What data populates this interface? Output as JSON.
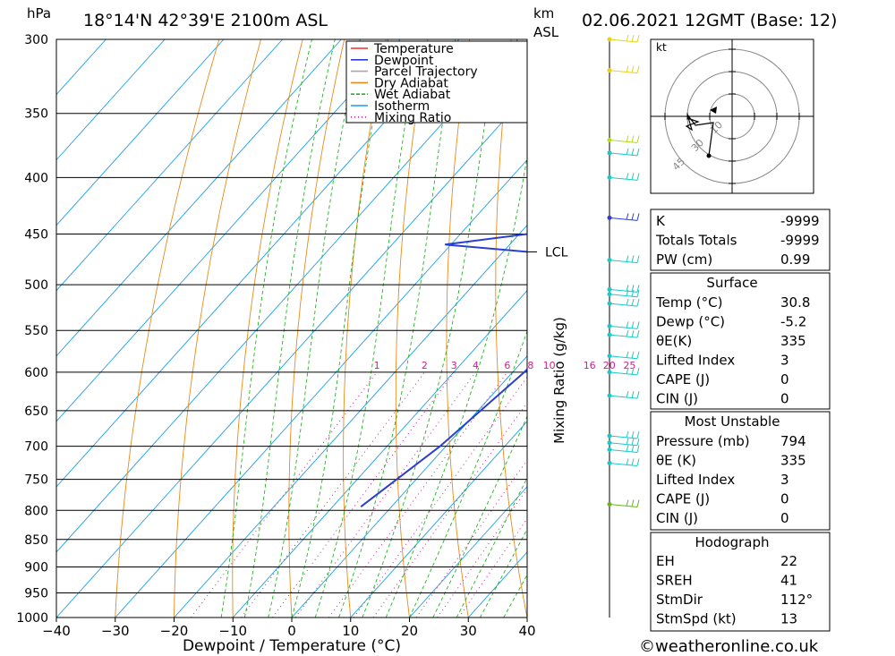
{
  "header": {
    "hpa_label": "hPa",
    "location": "18°14'N  42°39'E  2100m  ASL",
    "km_label": "km",
    "asl_label": "ASL",
    "datetime": "02.06.2021  12GMT  (Base: 12)"
  },
  "chart_data": {
    "type": "line",
    "title": "18°14'N  42°39'E  2100m  ASL",
    "xlabel": "Dewpoint / Temperature (°C)",
    "ylabel": "hPa",
    "right_axis_label": "Mixing Ratio (g/kg)",
    "x_ticks": [
      -40,
      -30,
      -20,
      -10,
      0,
      10,
      20,
      30,
      40
    ],
    "x_tick_labels": [
      "−40",
      "−30",
      "−20",
      "−10",
      "0",
      "10",
      "20",
      "30",
      "40"
    ],
    "pressure_levels": [
      300,
      350,
      400,
      450,
      500,
      550,
      600,
      650,
      700,
      750,
      800,
      850,
      900,
      950,
      1000
    ],
    "pressure_labels": [
      "300",
      "350",
      "400",
      "450",
      "500",
      "550",
      "600",
      "650",
      "700",
      "750",
      "800",
      "850",
      "900",
      "950",
      "1000"
    ],
    "xlim": [
      -40,
      40
    ],
    "ylim": [
      1000,
      300
    ],
    "y_scale": "log",
    "mixing_ratios": [
      1,
      2,
      3,
      4,
      6,
      8,
      10,
      16,
      20,
      25
    ],
    "mixing_ratio_labels": [
      "1",
      "2",
      "3",
      "4",
      "6",
      "8",
      "10",
      "16",
      "20",
      "25"
    ],
    "lcl_label": "LCL",
    "lcl_pressure": 467,
    "legend": [
      {
        "label": "Temperature",
        "color": "#e8302a",
        "style": "solid"
      },
      {
        "label": "Dewpoint",
        "color": "#2a3fd1",
        "style": "solid"
      },
      {
        "label": "Parcel Trajectory",
        "color": "#a8a8a8",
        "style": "solid"
      },
      {
        "label": "Dry Adiabat",
        "color": "#e88a1a",
        "style": "solid"
      },
      {
        "label": "Wet Adiabat",
        "color": "#22b422",
        "style": "dashed"
      },
      {
        "label": "Isotherm",
        "color": "#1e9ee8",
        "style": "solid"
      },
      {
        "label": "Mixing Ratio",
        "color": "#d0208a",
        "style": "dotted"
      }
    ],
    "series": [
      {
        "name": "Temperature",
        "color": "#e8302a",
        "points": [
          [
            794,
            30.8
          ],
          [
            780,
            28
          ],
          [
            600,
            12
          ],
          [
            550,
            7
          ],
          [
            500,
            2
          ],
          [
            475,
            -0.5
          ],
          [
            465,
            2
          ],
          [
            450,
            2.5
          ],
          [
            420,
            2.5
          ],
          [
            400,
            2
          ],
          [
            370,
            0
          ],
          [
            360,
            -2
          ]
        ]
      },
      {
        "name": "Dewpoint",
        "color": "#2a3fd1",
        "points": [
          [
            794,
            -5.2
          ],
          [
            700,
            -1
          ],
          [
            600,
            2
          ],
          [
            500,
            4
          ],
          [
            477,
            5.5
          ],
          [
            460,
            -31
          ],
          [
            447,
            -15
          ],
          [
            400,
            -22
          ],
          [
            380,
            -22
          ],
          [
            360,
            -22
          ],
          [
            300,
            -18
          ]
        ]
      },
      {
        "name": "Parcel Trajectory",
        "color": "#a8a8a8",
        "points": [
          [
            790,
            31
          ],
          [
            700,
            23
          ],
          [
            600,
            14
          ],
          [
            500,
            4
          ],
          [
            467,
            1
          ],
          [
            450,
            -1.5
          ],
          [
            400,
            -7
          ],
          [
            350,
            -13
          ],
          [
            300,
            -20
          ]
        ]
      }
    ]
  },
  "wind_barbs": {
    "pressures": [
      300,
      320,
      370,
      380,
      400,
      435,
      475,
      505,
      510,
      520,
      545,
      555,
      580,
      600,
      630,
      685,
      695,
      705,
      725,
      790
    ]
  },
  "hodograph": {
    "unit_label": "kt",
    "ring_labels": [
      "10",
      "30",
      "45"
    ]
  },
  "indices": {
    "rows": [
      {
        "label": "K",
        "value": "-9999"
      },
      {
        "label": "Totals Totals",
        "value": "-9999"
      },
      {
        "label": "PW (cm)",
        "value": "0.99"
      }
    ]
  },
  "surface": {
    "title": "Surface",
    "rows": [
      {
        "label": "Temp (°C)",
        "value": "30.8"
      },
      {
        "label": "Dewp (°C)",
        "value": "-5.2"
      },
      {
        "label": "θE(K)",
        "value": "335"
      },
      {
        "label": "Lifted Index",
        "value": "3"
      },
      {
        "label": "CAPE (J)",
        "value": "0"
      },
      {
        "label": "CIN (J)",
        "value": "0"
      }
    ]
  },
  "most_unstable": {
    "title": "Most Unstable",
    "rows": [
      {
        "label": "Pressure (mb)",
        "value": "794"
      },
      {
        "label": "θE (K)",
        "value": "335"
      },
      {
        "label": "Lifted Index",
        "value": "3"
      },
      {
        "label": "CAPE (J)",
        "value": "0"
      },
      {
        "label": "CIN (J)",
        "value": "0"
      }
    ]
  },
  "hodograph_stats": {
    "title": "Hodograph",
    "rows": [
      {
        "label": "EH",
        "value": "22"
      },
      {
        "label": "SREH",
        "value": "41"
      },
      {
        "label": "StmDir",
        "value": "112°"
      },
      {
        "label": "StmSpd (kt)",
        "value": "13"
      }
    ]
  },
  "footer": {
    "copyright": "©weatheronline.co.uk"
  }
}
